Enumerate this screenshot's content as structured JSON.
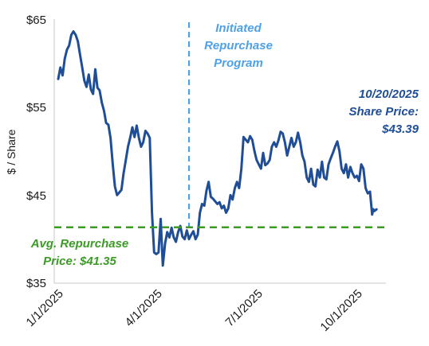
{
  "chart_data": {
    "type": "line",
    "ylabel": "$ / Share",
    "ylim": [
      35,
      65
    ],
    "y_ticks": [
      "$65",
      "$55",
      "$45",
      "$35"
    ],
    "y_tick_values": [
      65,
      55,
      45,
      35
    ],
    "x_ticks": [
      "1/1/2025",
      "4/1/2025",
      "7/1/2025",
      "10/1/2025"
    ],
    "x_tick_dates": [
      "2025-01-01",
      "2025-04-01",
      "2025-07-01",
      "2025-10-01"
    ],
    "xlim": [
      "2025-01-01",
      "2025-10-25"
    ],
    "grid": false,
    "colors": {
      "line": "#1f4e96",
      "repurchase": "#3a9b25",
      "initiated": "#4ea1e8"
    },
    "series": [
      {
        "values": [
          [
            "2025-01-01",
            58.2
          ],
          [
            "2025-01-03",
            59.5
          ],
          [
            "2025-01-05",
            58.6
          ],
          [
            "2025-01-07",
            60.5
          ],
          [
            "2025-01-09",
            61.5
          ],
          [
            "2025-01-11",
            62.0
          ],
          [
            "2025-01-13",
            63.2
          ],
          [
            "2025-01-15",
            63.6
          ],
          [
            "2025-01-17",
            63.2
          ],
          [
            "2025-01-19",
            62.5
          ],
          [
            "2025-01-21",
            61.0
          ],
          [
            "2025-01-23",
            59.5
          ],
          [
            "2025-01-25",
            58.0
          ],
          [
            "2025-01-27",
            57.3
          ],
          [
            "2025-01-29",
            58.7
          ],
          [
            "2025-01-31",
            57.0
          ],
          [
            "2025-02-02",
            56.5
          ],
          [
            "2025-02-04",
            59.3
          ],
          [
            "2025-02-06",
            57.2
          ],
          [
            "2025-02-08",
            56.9
          ],
          [
            "2025-02-10",
            55.5
          ],
          [
            "2025-02-12",
            54.6
          ],
          [
            "2025-02-14",
            53.2
          ],
          [
            "2025-02-16",
            53.0
          ],
          [
            "2025-02-18",
            51.5
          ],
          [
            "2025-02-20",
            48.5
          ],
          [
            "2025-02-22",
            46.0
          ],
          [
            "2025-02-24",
            45.0
          ],
          [
            "2025-02-26",
            45.3
          ],
          [
            "2025-02-28",
            45.6
          ],
          [
            "2025-03-02",
            47.5
          ],
          [
            "2025-03-04",
            49.0
          ],
          [
            "2025-03-06",
            50.5
          ],
          [
            "2025-03-08",
            51.5
          ],
          [
            "2025-03-10",
            52.7
          ],
          [
            "2025-03-12",
            51.6
          ],
          [
            "2025-03-14",
            52.9
          ],
          [
            "2025-03-16",
            51.5
          ],
          [
            "2025-03-18",
            50.5
          ],
          [
            "2025-03-20",
            51.0
          ],
          [
            "2025-03-22",
            52.3
          ],
          [
            "2025-03-24",
            52.0
          ],
          [
            "2025-03-26",
            51.5
          ],
          [
            "2025-03-28",
            43.0
          ],
          [
            "2025-03-30",
            38.5
          ],
          [
            "2025-04-01",
            38.3
          ],
          [
            "2025-04-03",
            38.5
          ],
          [
            "2025-04-05",
            42.3
          ],
          [
            "2025-04-07",
            37.0
          ],
          [
            "2025-04-09",
            39.5
          ],
          [
            "2025-04-11",
            40.8
          ],
          [
            "2025-04-13",
            40.2
          ],
          [
            "2025-04-15",
            41.3
          ],
          [
            "2025-04-17",
            40.2
          ],
          [
            "2025-04-19",
            39.7
          ],
          [
            "2025-04-21",
            40.8
          ],
          [
            "2025-04-23",
            41.5
          ],
          [
            "2025-04-25",
            40.3
          ],
          [
            "2025-04-27",
            40.0
          ],
          [
            "2025-04-29",
            41.0
          ],
          [
            "2025-05-01",
            40.0
          ],
          [
            "2025-05-03",
            40.5
          ],
          [
            "2025-05-05",
            40.9
          ],
          [
            "2025-05-07",
            40.0
          ],
          [
            "2025-05-09",
            40.5
          ],
          [
            "2025-05-11",
            43.0
          ],
          [
            "2025-05-13",
            44.0
          ],
          [
            "2025-05-15",
            43.8
          ],
          [
            "2025-05-17",
            45.5
          ],
          [
            "2025-05-19",
            46.5
          ],
          [
            "2025-05-21",
            44.8
          ],
          [
            "2025-05-23",
            44.6
          ],
          [
            "2025-05-25",
            44.3
          ],
          [
            "2025-05-27",
            44.0
          ],
          [
            "2025-05-29",
            44.2
          ],
          [
            "2025-05-31",
            43.5
          ],
          [
            "2025-06-02",
            43.8
          ],
          [
            "2025-06-04",
            43.0
          ],
          [
            "2025-06-06",
            43.5
          ],
          [
            "2025-06-08",
            45.0
          ],
          [
            "2025-06-10",
            44.5
          ],
          [
            "2025-06-12",
            45.8
          ],
          [
            "2025-06-14",
            46.5
          ],
          [
            "2025-06-16",
            45.8
          ],
          [
            "2025-06-18",
            48.0
          ],
          [
            "2025-06-20",
            51.6
          ],
          [
            "2025-06-22",
            51.3
          ],
          [
            "2025-06-24",
            51.0
          ],
          [
            "2025-06-26",
            51.7
          ],
          [
            "2025-06-28",
            51.3
          ],
          [
            "2025-06-30",
            50.0
          ],
          [
            "2025-07-02",
            49.0
          ],
          [
            "2025-07-04",
            48.5
          ],
          [
            "2025-07-06",
            48.0
          ],
          [
            "2025-07-08",
            49.8
          ],
          [
            "2025-07-10",
            48.4
          ],
          [
            "2025-07-12",
            48.6
          ],
          [
            "2025-07-14",
            49.0
          ],
          [
            "2025-07-16",
            50.5
          ],
          [
            "2025-07-18",
            51.0
          ],
          [
            "2025-07-20",
            50.5
          ],
          [
            "2025-07-22",
            51.2
          ],
          [
            "2025-07-24",
            52.2
          ],
          [
            "2025-07-26",
            52.0
          ],
          [
            "2025-07-28",
            51.0
          ],
          [
            "2025-07-30",
            49.5
          ],
          [
            "2025-08-01",
            50.5
          ],
          [
            "2025-08-03",
            51.5
          ],
          [
            "2025-08-05",
            50.5
          ],
          [
            "2025-08-07",
            51.0
          ],
          [
            "2025-08-09",
            52.1
          ],
          [
            "2025-08-11",
            51.0
          ],
          [
            "2025-08-13",
            49.5
          ],
          [
            "2025-08-15",
            48.8
          ],
          [
            "2025-08-17",
            47.0
          ],
          [
            "2025-08-19",
            46.5
          ],
          [
            "2025-08-21",
            48.0
          ],
          [
            "2025-08-23",
            46.2
          ],
          [
            "2025-08-25",
            46.0
          ],
          [
            "2025-08-27",
            47.9
          ],
          [
            "2025-08-29",
            47.0
          ],
          [
            "2025-08-31",
            48.8
          ],
          [
            "2025-09-02",
            47.0
          ],
          [
            "2025-09-04",
            46.8
          ],
          [
            "2025-09-06",
            48.5
          ],
          [
            "2025-09-08",
            49.2
          ],
          [
            "2025-09-10",
            49.8
          ],
          [
            "2025-09-12",
            50.5
          ],
          [
            "2025-09-14",
            51.1
          ],
          [
            "2025-09-16",
            50.0
          ],
          [
            "2025-09-18",
            48.0
          ],
          [
            "2025-09-20",
            47.5
          ],
          [
            "2025-09-22",
            48.5
          ],
          [
            "2025-09-24",
            47.0
          ],
          [
            "2025-09-26",
            48.2
          ],
          [
            "2025-09-28",
            47.5
          ],
          [
            "2025-09-30",
            47.0
          ],
          [
            "2025-10-02",
            47.2
          ],
          [
            "2025-10-04",
            46.6
          ],
          [
            "2025-10-06",
            48.5
          ],
          [
            "2025-10-08",
            48.0
          ],
          [
            "2025-10-10",
            45.8
          ],
          [
            "2025-10-12",
            45.2
          ],
          [
            "2025-10-14",
            45.4
          ],
          [
            "2025-10-16",
            42.8
          ],
          [
            "2025-10-17",
            43.4
          ],
          [
            "2025-10-18",
            43.2
          ],
          [
            "2025-10-20",
            43.39
          ]
        ]
      }
    ],
    "reference_lines": {
      "avg_repurchase": {
        "value": 41.35,
        "label_lines": [
          "Avg. Repurchase",
          "Price: $41.35"
        ]
      },
      "initiated": {
        "date": "2025-05-01",
        "label_lines": [
          "Initiated",
          "Repurchase",
          "Program"
        ]
      }
    },
    "annotations": {
      "share_price": {
        "label_lines": [
          "10/20/2025",
          "Share Price:",
          "$43.39"
        ]
      }
    }
  }
}
